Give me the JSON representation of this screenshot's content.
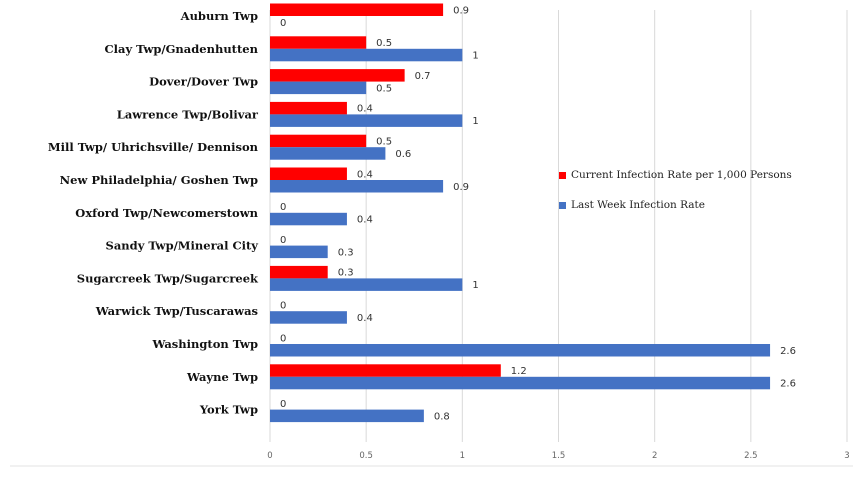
{
  "chart_data": {
    "type": "bar",
    "orientation": "horizontal",
    "categories": [
      "Auburn Twp",
      "Clay Twp/Gnadenhutten",
      "Dover/Dover Twp",
      "Lawrence Twp/Bolivar",
      "Mill Twp/ Uhrichsville/ Dennison",
      "New Philadelphia/ Goshen Twp",
      "Oxford Twp/Newcomerstown",
      "Sandy Twp/Mineral City",
      "Sugarcreek Twp/Sugarcreek",
      "Warwick Twp/Tuscarawas",
      "Washington Twp",
      "Wayne Twp",
      "York Twp"
    ],
    "series": [
      {
        "name": "Current Infection Rate per 1,000 Persons",
        "color": "#ff0000",
        "values": [
          0.9,
          0.5,
          0.7,
          0.4,
          0.5,
          0.4,
          0,
          0,
          0.3,
          0,
          0,
          1.2,
          0
        ]
      },
      {
        "name": "Last Week Infection Rate",
        "color": "#4472c4",
        "values": [
          0,
          1,
          0.5,
          1,
          0.6,
          0.9,
          0.4,
          0.3,
          1,
          0.4,
          2.6,
          2.6,
          0.8
        ]
      }
    ],
    "xlim": [
      0,
      3
    ],
    "xticks": [
      "0",
      "0.5",
      "1",
      "1.5",
      "2",
      "2.5",
      "3"
    ],
    "grid": "vertical",
    "legend_position": "right"
  }
}
